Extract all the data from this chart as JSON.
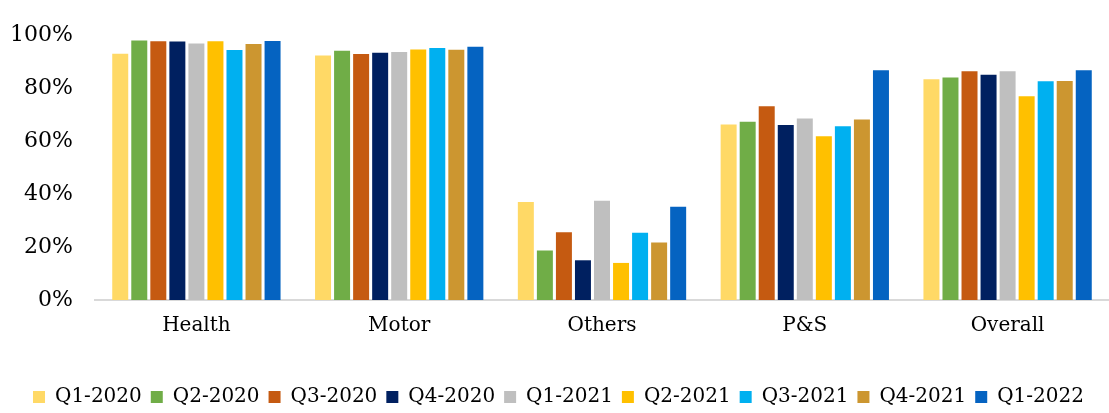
{
  "chart_data": {
    "type": "bar",
    "categories": [
      "Health",
      "Motor",
      "Others",
      "P&S",
      "Overall"
    ],
    "series": [
      {
        "name": "Q1-2020",
        "color": "#ffd966",
        "values": [
          93.0,
          92.3,
          37.0,
          66.3,
          83.4
        ]
      },
      {
        "name": "Q2-2020",
        "color": "#70ad47",
        "values": [
          98.0,
          94.1,
          18.7,
          67.3,
          84.0
        ]
      },
      {
        "name": "Q3-2020",
        "color": "#c55a11",
        "values": [
          97.7,
          92.9,
          25.6,
          73.2,
          86.4
        ]
      },
      {
        "name": "Q4-2020",
        "color": "#002060",
        "values": [
          97.6,
          93.4,
          15.0,
          66.1,
          85.1
        ]
      },
      {
        "name": "Q1-2021",
        "color": "#bfbfbf",
        "values": [
          96.9,
          93.7,
          37.5,
          68.5,
          86.4
        ]
      },
      {
        "name": "Q2-2021",
        "color": "#ffc000",
        "values": [
          97.7,
          94.6,
          14.0,
          61.8,
          76.9
        ]
      },
      {
        "name": "Q3-2021",
        "color": "#00b0f0",
        "values": [
          94.4,
          95.2,
          25.4,
          65.6,
          82.6
        ]
      },
      {
        "name": "Q4-2021",
        "color": "#cc9630",
        "values": [
          96.7,
          94.5,
          21.7,
          68.2,
          82.7
        ]
      },
      {
        "name": "Q1-2022",
        "color": "#0563c1",
        "values": [
          97.8,
          95.6,
          35.2,
          86.8,
          86.8
        ]
      }
    ],
    "ylim": [
      0,
      100
    ],
    "yticks": [
      {
        "value": 0,
        "label": "0%"
      },
      {
        "value": 20,
        "label": "20%"
      },
      {
        "value": 40,
        "label": "40%"
      },
      {
        "value": 60,
        "label": "60%"
      },
      {
        "value": 80,
        "label": "80%"
      },
      {
        "value": 100,
        "label": "100%"
      }
    ],
    "legend": "bottom"
  }
}
